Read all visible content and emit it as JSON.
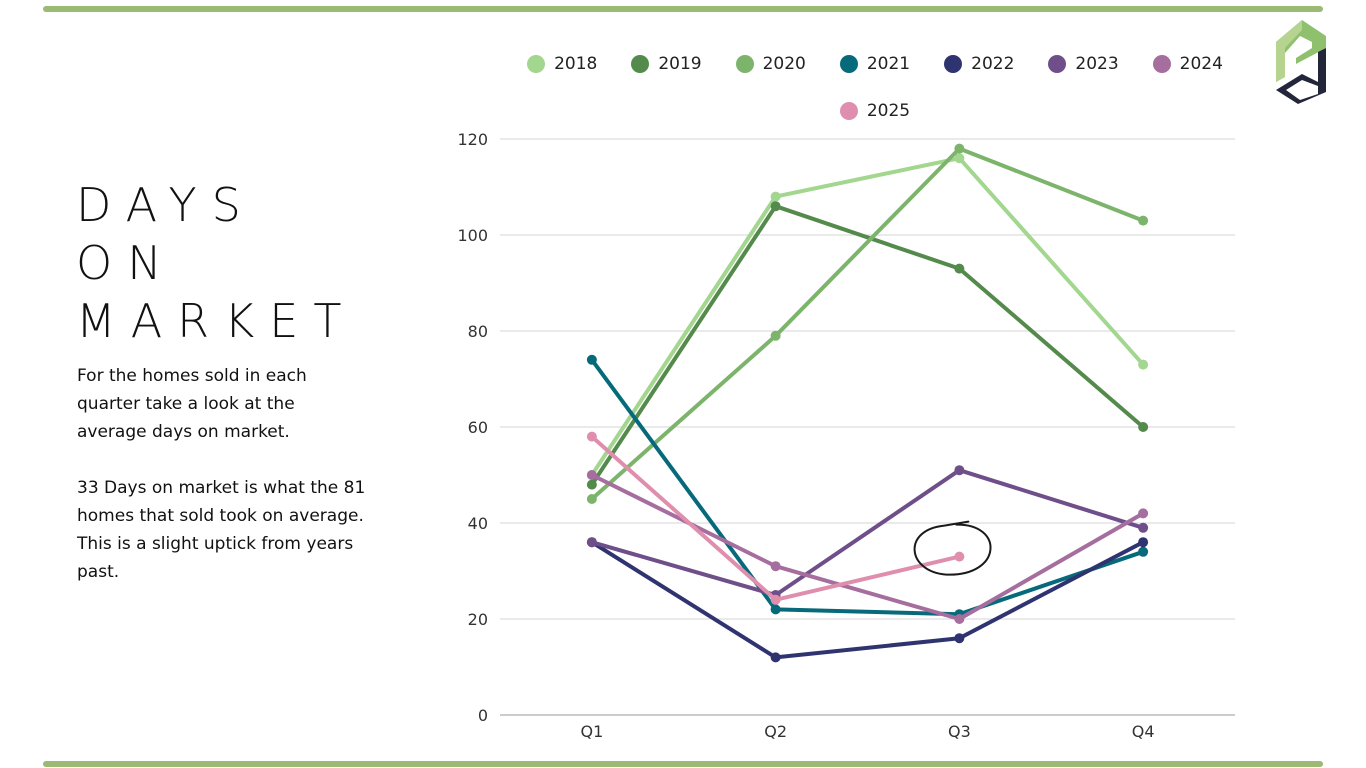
{
  "slide": {
    "title_lines": [
      "DAYS",
      "ON",
      "MARKET"
    ],
    "paragraphs": [
      "For the homes sold in each quarter take a look at the average days on market.",
      "33 Days on market is what the 81 homes that sold took on average.  This is a slight uptick from years past."
    ],
    "logo": "pd-logo",
    "accent_color": "#9bba74"
  },
  "chart_data": {
    "type": "line",
    "title": "",
    "xlabel": "",
    "ylabel": "",
    "categories": [
      "Q1",
      "Q2",
      "Q3",
      "Q4"
    ],
    "ylim": [
      0,
      120
    ],
    "yticks": [
      0,
      20,
      40,
      60,
      80,
      100,
      120
    ],
    "grid": true,
    "legend_position": "top",
    "series": [
      {
        "name": "2018",
        "color": "#a3d68f",
        "values": [
          50,
          108,
          116,
          73
        ]
      },
      {
        "name": "2019",
        "color": "#548a4b",
        "values": [
          48,
          106,
          93,
          60
        ]
      },
      {
        "name": "2020",
        "color": "#7db46c",
        "values": [
          45,
          79,
          118,
          103
        ]
      },
      {
        "name": "2021",
        "color": "#076a7a",
        "values": [
          74,
          22,
          21,
          34
        ]
      },
      {
        "name": "2022",
        "color": "#2f3470",
        "values": [
          36,
          12,
          16,
          36
        ]
      },
      {
        "name": "2023",
        "color": "#6f4f8a",
        "values": [
          36,
          25,
          51,
          39
        ]
      },
      {
        "name": "2024",
        "color": "#a56e9e",
        "values": [
          50,
          31,
          20,
          42
        ]
      },
      {
        "name": "2025",
        "color": "#df8fad",
        "values": [
          58,
          24,
          33,
          null
        ]
      }
    ],
    "annotations": [
      {
        "type": "hand-drawn-circle",
        "target_series": "2025",
        "target_category": "Q3"
      }
    ]
  }
}
